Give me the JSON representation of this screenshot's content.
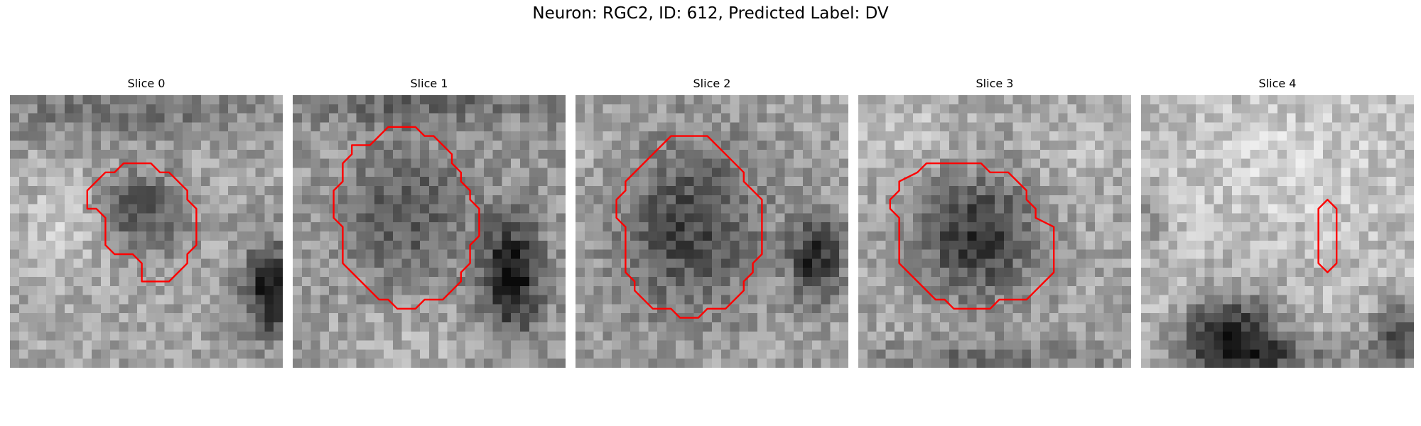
{
  "figure": {
    "title": "Neuron: RGC2, ID: 612, Predicted Label: DV"
  },
  "colors": {
    "contour": "#ff0000",
    "background": "#ffffff"
  },
  "panels": [
    {
      "title": "Slice 0",
      "contour": [
        [
          12.5,
          7.5
        ],
        [
          15.5,
          7.5
        ],
        [
          16.5,
          8.5
        ],
        [
          17.5,
          8.5
        ],
        [
          19.5,
          10.5
        ],
        [
          19.5,
          11.5
        ],
        [
          20.5,
          12.5
        ],
        [
          20.5,
          16.5
        ],
        [
          19.5,
          17.5
        ],
        [
          19.5,
          18.5
        ],
        [
          17.5,
          20.5
        ],
        [
          14.5,
          20.5
        ],
        [
          14.5,
          18.5
        ],
        [
          13.5,
          17.5
        ],
        [
          11.5,
          17.5
        ],
        [
          10.5,
          16.5
        ],
        [
          10.5,
          13.5
        ],
        [
          9.5,
          12.5
        ],
        [
          8.5,
          12.5
        ],
        [
          8.5,
          10.5
        ],
        [
          10.5,
          8.5
        ],
        [
          11.5,
          8.5
        ]
      ],
      "dark_blobs": [
        {
          "cx": 12.8,
          "cy": 12.0,
          "rx": 3.5,
          "ry": 3.2,
          "strength": 70
        },
        {
          "cx": 16.0,
          "cy": 13.5,
          "rx": 4.5,
          "ry": 5.5,
          "strength": 55
        },
        {
          "cx": 29.0,
          "cy": 21.5,
          "rx": 3.5,
          "ry": 5.5,
          "strength": 150
        },
        {
          "cx": 12.0,
          "cy": 2.0,
          "rx": 18.0,
          "ry": 3.5,
          "strength": 50
        }
      ],
      "light_blobs": [
        {
          "cx": 6.0,
          "cy": 14.0,
          "rx": 6.0,
          "ry": 6.0,
          "strength": 30
        }
      ],
      "base": 165,
      "seed": 11
    },
    {
      "title": "Slice 1",
      "contour": [
        [
          10.5,
          3.5
        ],
        [
          13.5,
          3.5
        ],
        [
          14.5,
          4.5
        ],
        [
          15.5,
          4.5
        ],
        [
          17.5,
          6.5
        ],
        [
          17.5,
          7.5
        ],
        [
          18.5,
          8.5
        ],
        [
          18.5,
          9.5
        ],
        [
          19.5,
          10.5
        ],
        [
          19.5,
          11.5
        ],
        [
          20.5,
          12.5
        ],
        [
          20.5,
          13.5
        ],
        [
          20.5,
          15.5
        ],
        [
          19.5,
          16.5
        ],
        [
          19.5,
          18.5
        ],
        [
          18.5,
          19.5
        ],
        [
          18.5,
          20.5
        ],
        [
          17.5,
          21.5
        ],
        [
          16.5,
          22.5
        ],
        [
          14.5,
          22.5
        ],
        [
          13.5,
          23.5
        ],
        [
          11.5,
          23.5
        ],
        [
          10.5,
          22.5
        ],
        [
          9.5,
          22.5
        ],
        [
          7.5,
          20.5
        ],
        [
          6.5,
          19.5
        ],
        [
          5.5,
          18.5
        ],
        [
          5.5,
          14.5
        ],
        [
          4.5,
          13.5
        ],
        [
          4.5,
          10.5
        ],
        [
          5.5,
          9.5
        ],
        [
          5.5,
          7.5
        ],
        [
          6.5,
          6.5
        ],
        [
          6.5,
          5.5
        ],
        [
          8.5,
          5.5
        ],
        [
          9.5,
          4.5
        ]
      ],
      "dark_blobs": [
        {
          "cx": 12.5,
          "cy": 13.0,
          "rx": 8.0,
          "ry": 9.0,
          "strength": 95
        },
        {
          "cx": 24.0,
          "cy": 20.0,
          "rx": 3.5,
          "ry": 7.0,
          "strength": 140
        },
        {
          "cx": 14.0,
          "cy": 1.0,
          "rx": 16.0,
          "ry": 2.5,
          "strength": 50
        }
      ],
      "light_blobs": [
        {
          "cx": 12.5,
          "cy": 13.0,
          "rx": 12.0,
          "ry": 12.0,
          "strength": 35
        },
        {
          "cx": 14.0,
          "cy": 27.0,
          "rx": 12.0,
          "ry": 3.5,
          "strength": 25
        }
      ],
      "base": 150,
      "seed": 23
    },
    {
      "title": "Slice 2",
      "contour": [
        [
          10.5,
          4.5
        ],
        [
          14.5,
          4.5
        ],
        [
          15.5,
          5.5
        ],
        [
          16.5,
          6.5
        ],
        [
          18.5,
          8.5
        ],
        [
          18.5,
          9.5
        ],
        [
          19.5,
          10.5
        ],
        [
          20.5,
          11.5
        ],
        [
          20.5,
          14.5
        ],
        [
          20.5,
          17.5
        ],
        [
          19.5,
          18.5
        ],
        [
          19.5,
          19.5
        ],
        [
          18.5,
          20.5
        ],
        [
          18.5,
          21.5
        ],
        [
          17.5,
          22.5
        ],
        [
          16.5,
          23.5
        ],
        [
          14.5,
          23.5
        ],
        [
          13.5,
          24.5
        ],
        [
          11.5,
          24.5
        ],
        [
          10.5,
          23.5
        ],
        [
          8.5,
          23.5
        ],
        [
          6.5,
          21.5
        ],
        [
          6.5,
          20.5
        ],
        [
          5.5,
          19.5
        ],
        [
          5.5,
          17.5
        ],
        [
          5.5,
          14.5
        ],
        [
          4.5,
          13.5
        ],
        [
          4.5,
          11.5
        ],
        [
          5.5,
          10.5
        ],
        [
          5.5,
          9.5
        ],
        [
          6.5,
          8.5
        ],
        [
          7.5,
          7.5
        ],
        [
          8.5,
          6.5
        ],
        [
          9.5,
          5.5
        ]
      ],
      "dark_blobs": [
        {
          "cx": 12.5,
          "cy": 14.5,
          "rx": 8.5,
          "ry": 10.0,
          "strength": 90
        },
        {
          "cx": 26.5,
          "cy": 18.0,
          "rx": 3.0,
          "ry": 5.0,
          "strength": 120
        }
      ],
      "light_blobs": [
        {
          "cx": 3.0,
          "cy": 5.0,
          "rx": 4.0,
          "ry": 4.0,
          "strength": 20
        }
      ],
      "base": 160,
      "seed": 37
    },
    {
      "title": "Slice 3",
      "contour": [
        [
          9.5,
          7.5
        ],
        [
          13.5,
          7.5
        ],
        [
          14.5,
          8.5
        ],
        [
          16.5,
          8.5
        ],
        [
          18.5,
          10.5
        ],
        [
          18.5,
          11.5
        ],
        [
          19.5,
          12.5
        ],
        [
          19.5,
          13.5
        ],
        [
          21.5,
          14.5
        ],
        [
          21.5,
          19.5
        ],
        [
          20.5,
          20.5
        ],
        [
          19.5,
          21.5
        ],
        [
          18.5,
          22.5
        ],
        [
          15.5,
          22.5
        ],
        [
          14.5,
          23.5
        ],
        [
          10.5,
          23.5
        ],
        [
          9.5,
          22.5
        ],
        [
          8.5,
          22.5
        ],
        [
          6.5,
          20.5
        ],
        [
          4.5,
          18.5
        ],
        [
          4.5,
          13.5
        ],
        [
          3.5,
          12.5
        ],
        [
          3.5,
          11.5
        ],
        [
          4.5,
          10.5
        ],
        [
          4.5,
          9.5
        ],
        [
          6.5,
          8.5
        ],
        [
          7.5,
          7.5
        ]
      ],
      "dark_blobs": [
        {
          "cx": 13.0,
          "cy": 15.5,
          "rx": 7.0,
          "ry": 7.5,
          "strength": 110
        },
        {
          "cx": 14.0,
          "cy": 29.5,
          "rx": 14.0,
          "ry": 2.5,
          "strength": 60
        }
      ],
      "light_blobs": [
        {
          "cx": 4.0,
          "cy": 4.0,
          "rx": 8.0,
          "ry": 6.0,
          "strength": 30
        },
        {
          "cx": 24.0,
          "cy": 6.0,
          "rx": 6.0,
          "ry": 6.0,
          "strength": 20
        }
      ],
      "base": 165,
      "seed": 53
    },
    {
      "title": "Slice 4",
      "contour": [
        [
          20.5,
          11.5
        ],
        [
          21.5,
          12.5
        ],
        [
          21.5,
          18.5
        ],
        [
          20.5,
          19.5
        ],
        [
          19.5,
          18.5
        ],
        [
          19.5,
          12.5
        ]
      ],
      "dark_blobs": [
        {
          "cx": 10.0,
          "cy": 26.0,
          "rx": 6.0,
          "ry": 4.5,
          "strength": 140
        },
        {
          "cx": 14.0,
          "cy": 29.0,
          "rx": 11.0,
          "ry": 2.5,
          "strength": 80
        },
        {
          "cx": 28.5,
          "cy": 26.5,
          "rx": 3.5,
          "ry": 3.5,
          "strength": 120
        },
        {
          "cx": 1.0,
          "cy": 13.0,
          "rx": 2.0,
          "ry": 4.0,
          "strength": 40
        }
      ],
      "light_blobs": [
        {
          "cx": 16.0,
          "cy": 8.0,
          "rx": 14.0,
          "ry": 8.0,
          "strength": 25
        }
      ],
      "base": 185,
      "seed": 71
    }
  ]
}
